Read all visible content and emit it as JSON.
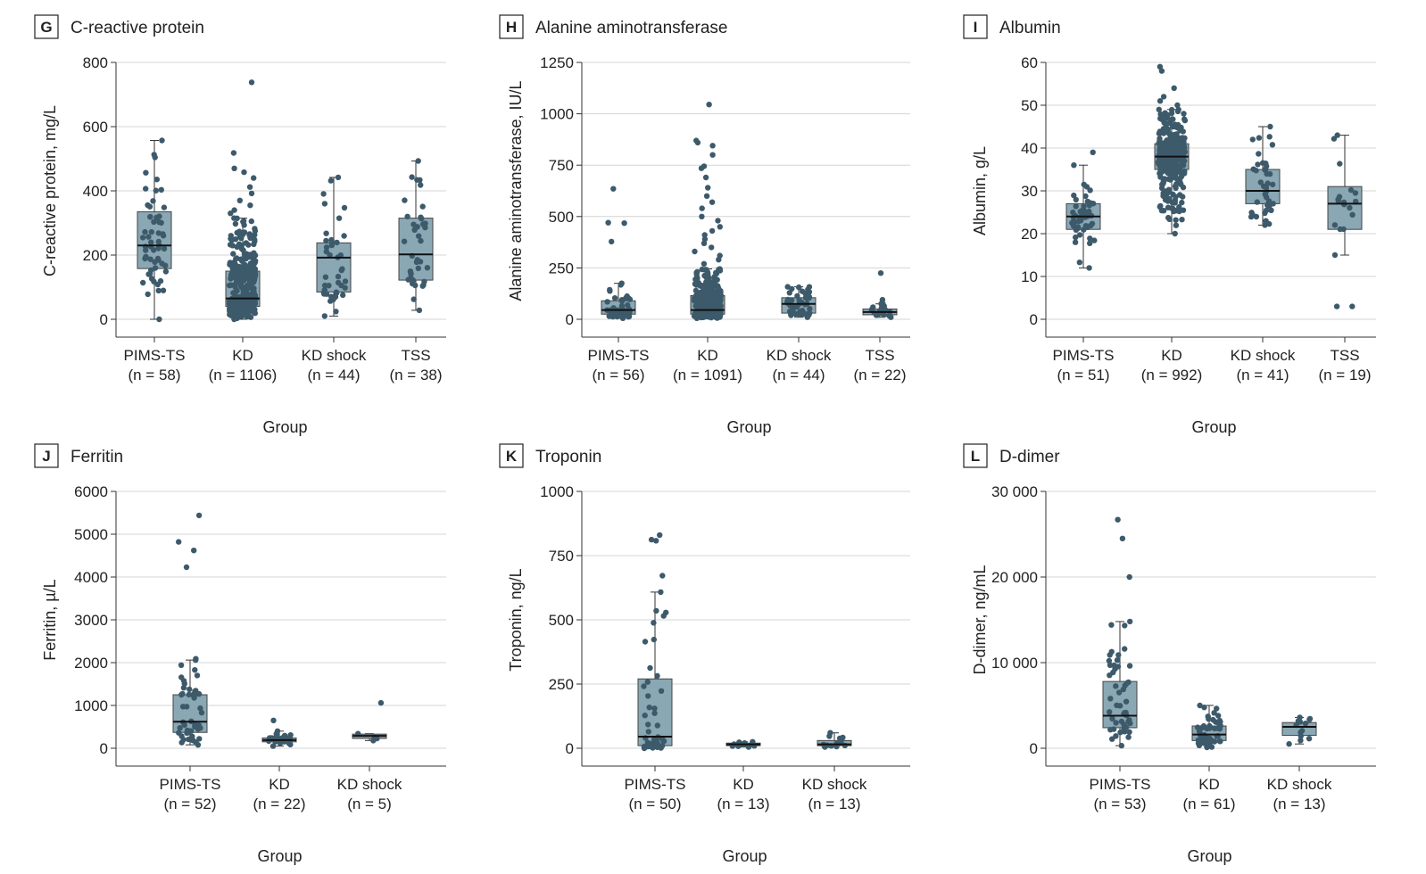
{
  "chart_data": [
    {
      "id": "G",
      "type": "box",
      "title": "C-reactive protein",
      "ylabel": "C-reactive protein, mg/L",
      "xlabel": "Group",
      "ylim": [
        0,
        800
      ],
      "yticks": [
        0,
        200,
        400,
        600,
        800
      ],
      "ytick_labels": [
        "0",
        "200",
        "400",
        "600",
        "800"
      ],
      "color": "#3d5a6b",
      "box_color": "#8aa7b4",
      "groups": [
        {
          "name": "PIMS-TS",
          "n": "(n = 58)",
          "q1": 158,
          "median": 230,
          "q3": 335,
          "whisker_low": 0,
          "whisker_high": 557,
          "count": 58,
          "outliers": []
        },
        {
          "name": "KD",
          "n": "(n = 1106)",
          "q1": 40,
          "median": 65,
          "q3": 150,
          "whisker_low": 0,
          "whisker_high": 315,
          "count": 350,
          "outliers": [
            738,
            518,
            470,
            458,
            440,
            412,
            392,
            370,
            355,
            340,
            330
          ]
        },
        {
          "name": "KD shock",
          "n": "(n = 44)",
          "q1": 85,
          "median": 192,
          "q3": 238,
          "whisker_low": 10,
          "whisker_high": 442,
          "count": 44,
          "outliers": []
        },
        {
          "name": "TSS",
          "n": "(n = 38)",
          "q1": 122,
          "median": 202,
          "q3": 315,
          "whisker_low": 28,
          "whisker_high": 493,
          "count": 38,
          "outliers": []
        }
      ]
    },
    {
      "id": "H",
      "type": "box",
      "title": "Alanine aminotransferase",
      "ylabel": "Alanine aminotransferase, IU/L",
      "xlabel": "Group",
      "ylim": [
        0,
        1250
      ],
      "yticks": [
        0,
        250,
        500,
        750,
        1000,
        1250
      ],
      "ytick_labels": [
        "0",
        "250",
        "500",
        "750",
        "1000",
        "1250"
      ],
      "color": "#3d5a6b",
      "box_color": "#8aa7b4",
      "groups": [
        {
          "name": "PIMS-TS",
          "n": "(n = 56)",
          "q1": 25,
          "median": 45,
          "q3": 90,
          "whisker_low": 5,
          "whisker_high": 175,
          "count": 50,
          "outliers": [
            635,
            470,
            468,
            378
          ]
        },
        {
          "name": "KD",
          "n": "(n = 1091)",
          "q1": 25,
          "median": 45,
          "q3": 115,
          "whisker_low": 5,
          "whisker_high": 245,
          "count": 320,
          "outliers": [
            1045,
            870,
            860,
            845,
            800,
            745,
            735,
            690,
            640,
            600,
            570,
            540,
            500,
            480,
            450,
            430,
            410,
            390,
            370,
            350,
            330,
            310,
            290,
            270
          ]
        },
        {
          "name": "KD shock",
          "n": "(n = 44)",
          "q1": 30,
          "median": 75,
          "q3": 105,
          "whisker_low": 10,
          "whisker_high": 158,
          "count": 44,
          "outliers": []
        },
        {
          "name": "TSS",
          "n": "(n = 22)",
          "q1": 22,
          "median": 35,
          "q3": 50,
          "whisker_low": 10,
          "whisker_high": 75,
          "count": 20,
          "outliers": [
            225,
            95
          ]
        }
      ]
    },
    {
      "id": "I",
      "type": "box",
      "title": "Albumin",
      "ylabel": "Albumin, g/L",
      "xlabel": "Group",
      "ylim": [
        0,
        60
      ],
      "yticks": [
        0,
        10,
        20,
        30,
        40,
        50,
        60
      ],
      "ytick_labels": [
        "0",
        "10",
        "20",
        "30",
        "40",
        "50",
        "60"
      ],
      "color": "#3d5a6b",
      "box_color": "#8aa7b4",
      "groups": [
        {
          "name": "PIMS-TS",
          "n": "(n = 51)",
          "q1": 21,
          "median": 24,
          "q3": 27,
          "whisker_low": 12,
          "whisker_high": 36,
          "count": 50,
          "outliers": [
            39
          ]
        },
        {
          "name": "KD",
          "n": "(n = 992)",
          "q1": 35,
          "median": 38,
          "q3": 41,
          "whisker_low": 20,
          "whisker_high": 49,
          "count": 300,
          "outliers": [
            59,
            58,
            54,
            52,
            51,
            50
          ]
        },
        {
          "name": "KD shock",
          "n": "(n = 41)",
          "q1": 27,
          "median": 30,
          "q3": 35,
          "whisker_low": 22,
          "whisker_high": 45,
          "count": 41,
          "outliers": []
        },
        {
          "name": "TSS",
          "n": "(n = 19)",
          "q1": 21,
          "median": 27,
          "q3": 31,
          "whisker_low": 15,
          "whisker_high": 43,
          "count": 17,
          "outliers": [
            3,
            3
          ]
        }
      ]
    },
    {
      "id": "J",
      "type": "box",
      "title": "Ferritin",
      "ylabel": "Ferritin, µ/L",
      "xlabel": "Group",
      "ylim": [
        0,
        6000
      ],
      "yticks": [
        0,
        1000,
        2000,
        3000,
        4000,
        5000,
        6000
      ],
      "ytick_labels": [
        "0",
        "1000",
        "2000",
        "3000",
        "4000",
        "5000",
        "6000"
      ],
      "color": "#3d5a6b",
      "box_color": "#8aa7b4",
      "groups": [
        {
          "name": "PIMS-TS",
          "n": "(n = 52)",
          "q1": 370,
          "median": 620,
          "q3": 1250,
          "whisker_low": 80,
          "whisker_high": 2060,
          "count": 47,
          "outliers": [
            5440,
            4820,
            4620,
            4230,
            2090
          ]
        },
        {
          "name": "KD",
          "n": "(n = 22)",
          "q1": 150,
          "median": 190,
          "q3": 240,
          "whisker_low": 50,
          "whisker_high": 400,
          "count": 21,
          "outliers": [
            650
          ]
        },
        {
          "name": "KD shock",
          "n": "(n = 5)",
          "q1": 230,
          "median": 290,
          "q3": 330,
          "whisker_low": 180,
          "whisker_high": 340,
          "count": 4,
          "outliers": [
            1060
          ]
        }
      ]
    },
    {
      "id": "K",
      "type": "box",
      "title": "Troponin",
      "ylabel": "Troponin, ng/L",
      "xlabel": "Group",
      "ylim": [
        0,
        1000
      ],
      "yticks": [
        0,
        250,
        500,
        750,
        1000
      ],
      "ytick_labels": [
        "0",
        "250",
        "500",
        "750",
        "1000"
      ],
      "color": "#3d5a6b",
      "box_color": "#8aa7b4",
      "groups": [
        {
          "name": "PIMS-TS",
          "n": "(n = 50)",
          "q1": 10,
          "median": 45,
          "q3": 270,
          "whisker_low": 0,
          "whisker_high": 608,
          "count": 45,
          "outliers": [
            830,
            812,
            808,
            672,
            535
          ]
        },
        {
          "name": "KD",
          "n": "(n = 13)",
          "q1": 10,
          "median": 15,
          "q3": 20,
          "whisker_low": 5,
          "whisker_high": 25,
          "count": 13,
          "outliers": []
        },
        {
          "name": "KD shock",
          "n": "(n = 13)",
          "q1": 10,
          "median": 15,
          "q3": 30,
          "whisker_low": 5,
          "whisker_high": 60,
          "count": 13,
          "outliers": []
        }
      ]
    },
    {
      "id": "L",
      "type": "box",
      "title": "D-dimer",
      "ylabel": "D-dimer, ng/mL",
      "xlabel": "Group",
      "ylim": [
        0,
        30000
      ],
      "yticks": [
        0,
        10000,
        20000,
        30000
      ],
      "ytick_labels": [
        "0",
        "10 000",
        "20 000",
        "30 000"
      ],
      "color": "#3d5a6b",
      "box_color": "#8aa7b4",
      "groups": [
        {
          "name": "PIMS-TS",
          "n": "(n = 53)",
          "q1": 2400,
          "median": 3800,
          "q3": 7800,
          "whisker_low": 300,
          "whisker_high": 14800,
          "count": 50,
          "outliers": [
            26700,
            24500,
            20000
          ]
        },
        {
          "name": "KD",
          "n": "(n = 61)",
          "q1": 900,
          "median": 1600,
          "q3": 2600,
          "whisker_low": 100,
          "whisker_high": 5000,
          "count": 61,
          "outliers": []
        },
        {
          "name": "KD shock",
          "n": "(n = 13)",
          "q1": 1500,
          "median": 2500,
          "q3": 3000,
          "whisker_low": 500,
          "whisker_high": 3600,
          "count": 13,
          "outliers": []
        }
      ]
    }
  ]
}
